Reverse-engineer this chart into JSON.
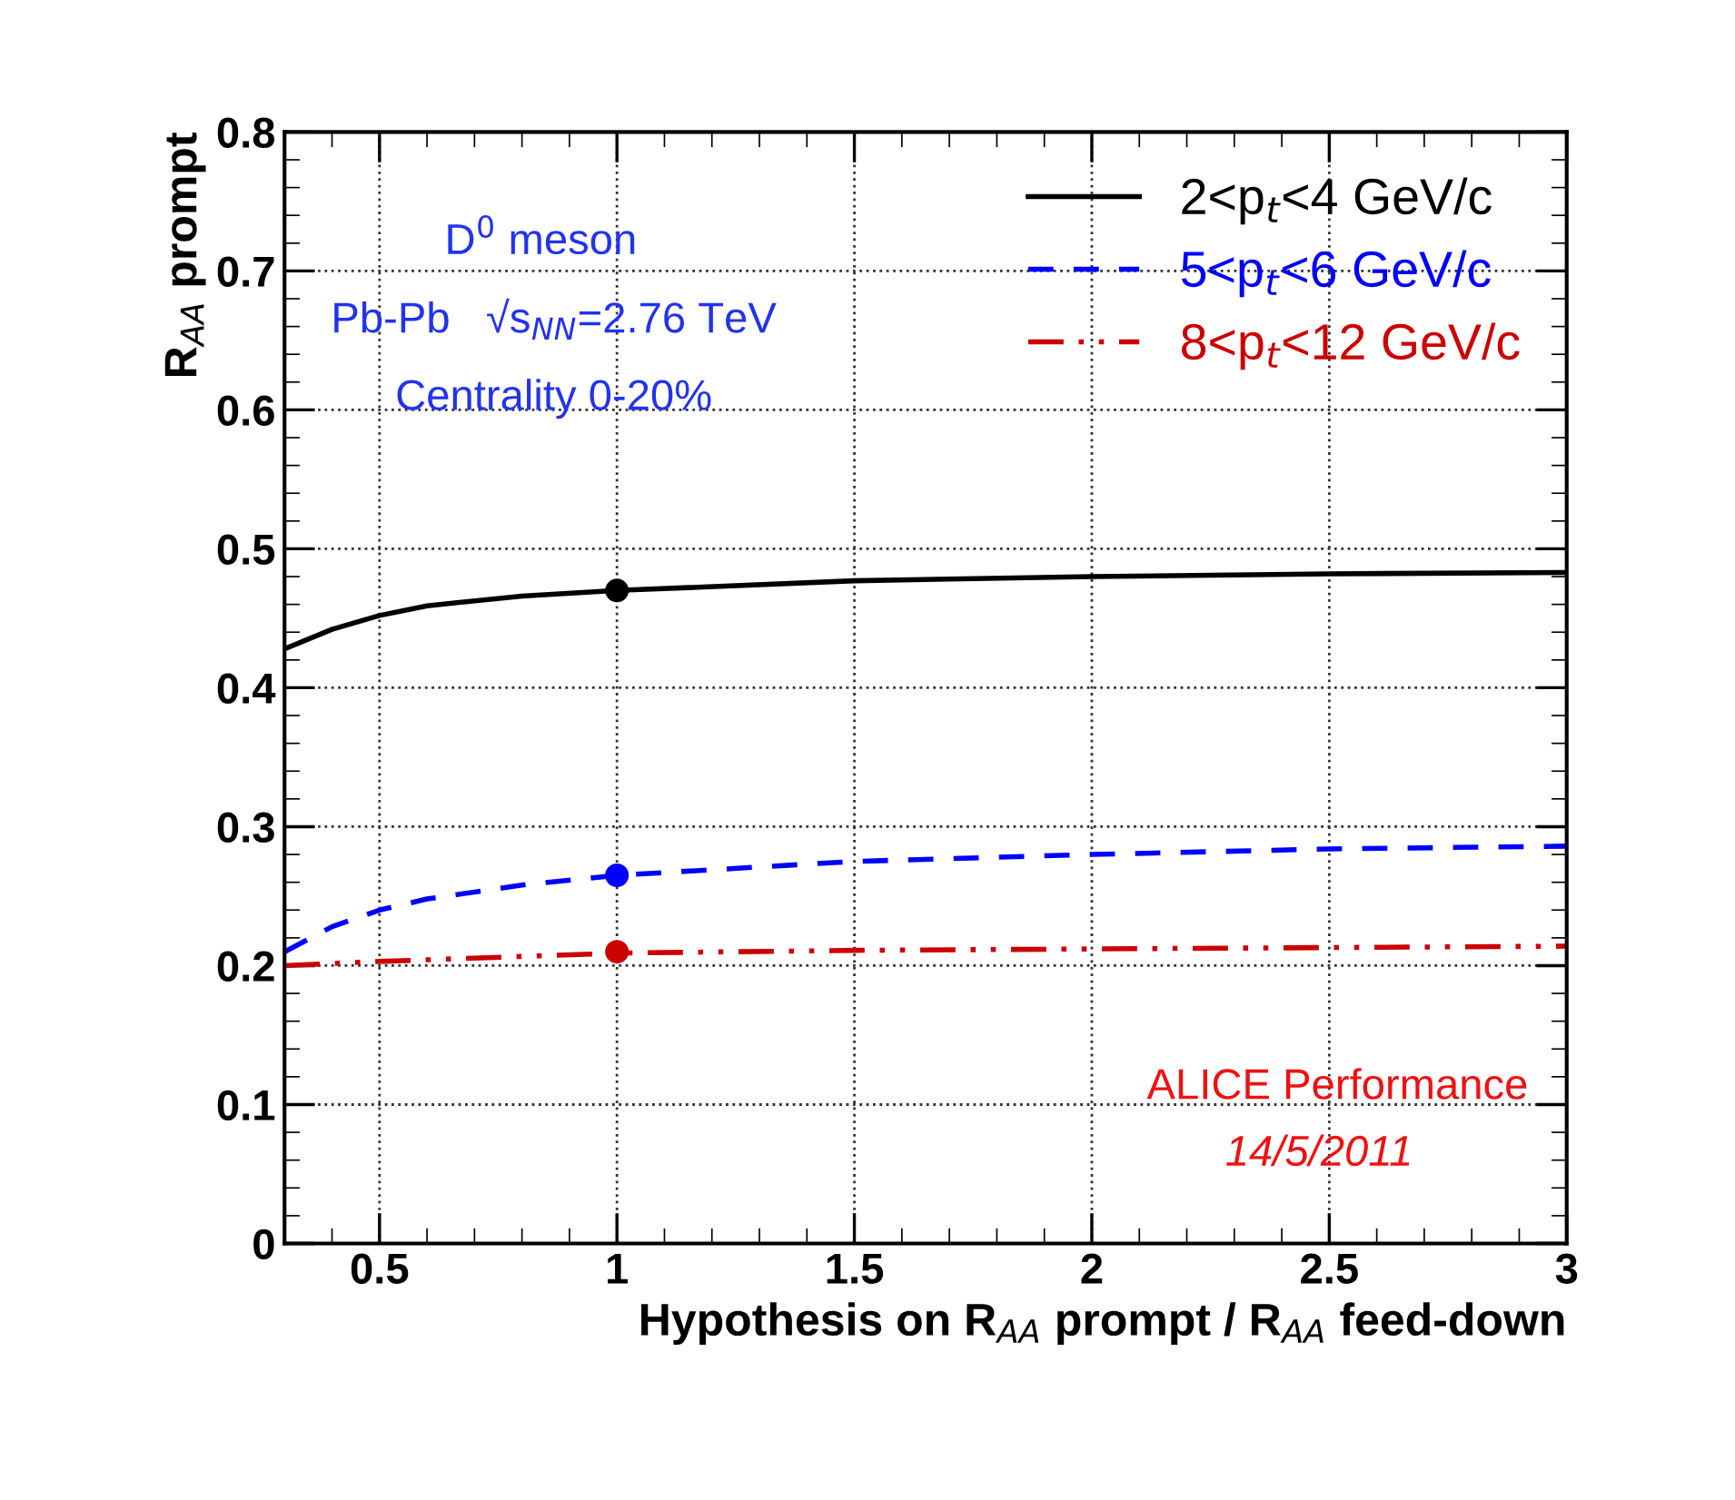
{
  "chart_data": {
    "type": "line",
    "xlabel": "Hypothesis on R$_{AA}$ prompt / R$_{AA}$ feed-down",
    "ylabel": "R$_{AA}$ prompt",
    "xlim": [
      0.3,
      3
    ],
    "xticks": [
      0.5,
      1,
      1.5,
      2,
      2.5,
      3
    ],
    "ylim": [
      0,
      0.8
    ],
    "yticks": [
      0,
      0.1,
      0.2,
      0.3,
      0.4,
      0.5,
      0.6,
      0.7,
      0.8
    ],
    "grid": true,
    "legend": "top right",
    "series": [
      {
        "name": "2<p$_{t}$<4 GeV/c",
        "color": "#000000",
        "line_style": "solid",
        "x": [
          0.3,
          0.4,
          0.5,
          0.6,
          0.8,
          1,
          1.5,
          2,
          2.5,
          3
        ],
        "values": [
          0.428,
          0.442,
          0.452,
          0.459,
          0.466,
          0.47,
          0.477,
          0.48,
          0.482,
          0.483
        ]
      },
      {
        "name": "5<p$_{t}$<6 GeV/c",
        "color": "#0000ff",
        "line_style": "dashed",
        "x": [
          0.3,
          0.4,
          0.5,
          0.6,
          0.8,
          1,
          1.5,
          2,
          2.5,
          3
        ],
        "values": [
          0.21,
          0.228,
          0.24,
          0.248,
          0.258,
          0.265,
          0.275,
          0.28,
          0.284,
          0.286
        ]
      },
      {
        "name": "8<p$_{t}$<12 GeV/c",
        "color": "#cc0000",
        "line_style": "dashdot",
        "x": [
          0.3,
          0.5,
          1,
          1.5,
          2,
          2.5,
          3
        ],
        "values": [
          0.2,
          0.203,
          0.209,
          0.211,
          0.212,
          0.213,
          0.214
        ]
      },
      {
        "type": "scatter",
        "marker": "circle",
        "color": "#000000",
        "x": [
          1
        ],
        "values": [
          0.47
        ]
      },
      {
        "type": "scatter",
        "marker": "circle",
        "color": "#0000ff",
        "x": [
          1
        ],
        "values": [
          0.265
        ]
      },
      {
        "type": "scatter",
        "marker": "circle",
        "color": "#cc0000",
        "x": [
          1
        ],
        "values": [
          0.21
        ]
      }
    ],
    "annotations": [
      "D$^{0}$ meson",
      "Pb-Pb   √s$_{NN}$=2.76 TeV",
      "Centrality 0-20%",
      "ALICE Performance",
      "14/5/2011"
    ]
  }
}
